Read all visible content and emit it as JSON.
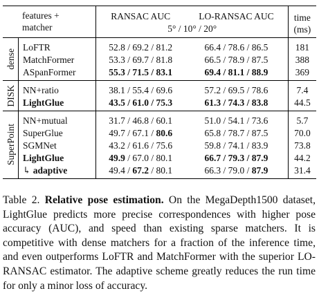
{
  "table": {
    "header": {
      "features": [
        "features +",
        "matcher"
      ],
      "ransac": "RANSAC AUC",
      "lo_ransac": "LO-RANSAC AUC",
      "thresholds": "5° / 10° / 20°",
      "time": [
        "time",
        "(ms)"
      ]
    },
    "groups": [
      {
        "label": "dense",
        "rows": [
          {
            "method": [
              {
                "text": "LoFTR",
                "bold": false
              }
            ],
            "ransac": [
              {
                "text": "52.8 / 69.2 / 81.2",
                "bold": false
              }
            ],
            "lo_ransac": [
              {
                "text": "66.4 / 78.6 / 86.5",
                "bold": false
              }
            ],
            "time": [
              {
                "text": "181",
                "bold": false
              }
            ]
          },
          {
            "method": [
              {
                "text": "MatchFormer",
                "bold": false
              }
            ],
            "ransac": [
              {
                "text": "53.3 / 69.7 / 81.8",
                "bold": false
              }
            ],
            "lo_ransac": [
              {
                "text": "66.5 / 78.9 / 87.5",
                "bold": false
              }
            ],
            "time": [
              {
                "text": "388",
                "bold": false
              }
            ]
          },
          {
            "method": [
              {
                "text": "ASpanFormer",
                "bold": false
              }
            ],
            "ransac": [
              {
                "text": "55.3 / 71.5 / 83.1",
                "bold": true
              }
            ],
            "lo_ransac": [
              {
                "text": "69.4 / 81.1 / 88.9",
                "bold": true
              }
            ],
            "time": [
              {
                "text": "369",
                "bold": false
              }
            ]
          }
        ]
      },
      {
        "label": "DISK",
        "rows": [
          {
            "method": [
              {
                "text": "NN+ratio",
                "bold": false
              }
            ],
            "ransac": [
              {
                "text": "38.1 / 55.4 / 69.6",
                "bold": false
              }
            ],
            "lo_ransac": [
              {
                "text": "57.2 / 69.5 / 78.6",
                "bold": false
              }
            ],
            "time": [
              {
                "text": "7.4",
                "bold": false
              }
            ]
          },
          {
            "method": [
              {
                "text": "LightGlue",
                "bold": true
              }
            ],
            "ransac": [
              {
                "text": "43.5 / 61.0 / 75.3",
                "bold": true
              }
            ],
            "lo_ransac": [
              {
                "text": "61.3 / 74.3 / 83.8",
                "bold": true
              }
            ],
            "time": [
              {
                "text": "44.5",
                "bold": false
              }
            ]
          }
        ]
      },
      {
        "label": "SuperPoint",
        "rows": [
          {
            "method": [
              {
                "text": "NN+mutual",
                "bold": false
              }
            ],
            "ransac": [
              {
                "text": "31.7 / 46.8 / 60.1",
                "bold": false
              }
            ],
            "lo_ransac": [
              {
                "text": "51.0 / 54.1 / 73.6",
                "bold": false
              }
            ],
            "time": [
              {
                "text": "5.7",
                "bold": false
              }
            ]
          },
          {
            "method": [
              {
                "text": "SuperGlue",
                "bold": false
              }
            ],
            "ransac": [
              {
                "text": "49.7 / 67.1 / ",
                "bold": false
              },
              {
                "text": "80.6",
                "bold": true
              }
            ],
            "lo_ransac": [
              {
                "text": "65.8 / 78.7 / 87.5",
                "bold": false
              }
            ],
            "time": [
              {
                "text": "70.0",
                "bold": false
              }
            ]
          },
          {
            "method": [
              {
                "text": "SGMNet",
                "bold": false
              }
            ],
            "ransac": [
              {
                "text": "43.2 / 61.6 / 75.6",
                "bold": false
              }
            ],
            "lo_ransac": [
              {
                "text": "59.8 / 74.1 / 83.9",
                "bold": false
              }
            ],
            "time": [
              {
                "text": "73.8",
                "bold": false
              }
            ]
          },
          {
            "method": [
              {
                "text": "LightGlue",
                "bold": true
              }
            ],
            "ransac": [
              {
                "text": "49.9",
                "bold": true
              },
              {
                "text": " / 67.0 / 80.1",
                "bold": false
              }
            ],
            "lo_ransac": [
              {
                "text": "66.7 / 79.3 / 87.9",
                "bold": true
              }
            ],
            "time": [
              {
                "text": "44.2",
                "bold": false
              }
            ]
          },
          {
            "method": [
              {
                "text": "↳ ",
                "bold": false
              },
              {
                "text": "adaptive",
                "bold": true
              }
            ],
            "ransac": [
              {
                "text": "49.4 / ",
                "bold": false
              },
              {
                "text": "67.2",
                "bold": true
              },
              {
                "text": " / 80.1",
                "bold": false
              }
            ],
            "lo_ransac": [
              {
                "text": "66.3 / 79.0 / ",
                "bold": false
              },
              {
                "text": "87.9",
                "bold": true
              }
            ],
            "time": [
              {
                "text": "31.4",
                "bold": false
              }
            ]
          }
        ]
      }
    ]
  },
  "caption": [
    {
      "text": "Table 2. ",
      "bold": false
    },
    {
      "text": "Relative pose estimation.",
      "bold": true
    },
    {
      "text": " On the MegaDepth1500 dataset, LightGlue predicts more precise correspondences with higher pose accuracy (AUC), and speed than existing sparse matchers. It is competitive with dense matchers for a fraction of the inference time, and even outperforms LoFTR and MatchFormer with the superior LO-RANSAC estimator. The adaptive scheme greatly reduces the run time for only a minor loss of accuracy.",
      "bold": false
    }
  ]
}
